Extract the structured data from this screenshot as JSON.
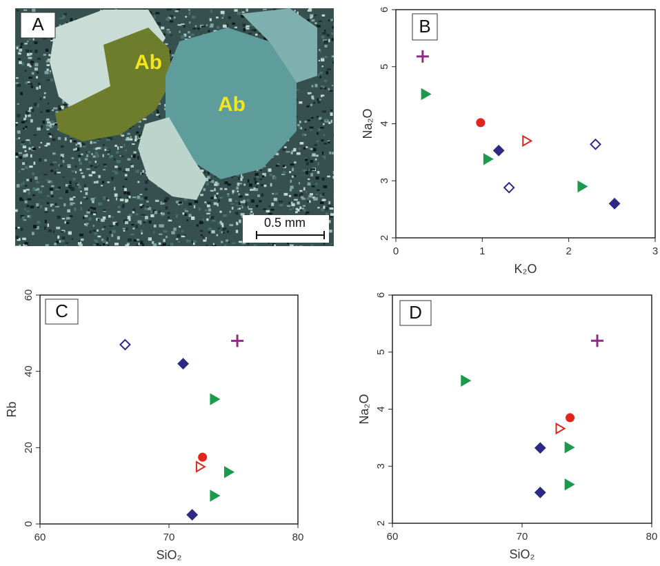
{
  "photo": {
    "label": "A",
    "annotations": [
      "Ab",
      "Ab"
    ],
    "scale_bar": "0.5 mm"
  },
  "chart_data": [
    {
      "type": "scatter",
      "label": "B",
      "xlabel": "K₂O",
      "ylabel": "Na₂O",
      "xlim": [
        0,
        3
      ],
      "ylim": [
        2,
        6
      ],
      "xticks": [
        0,
        1,
        2,
        3
      ],
      "yticks": [
        2,
        3,
        4,
        5,
        6
      ],
      "series": [
        {
          "marker": "plus",
          "color": "#8e2c84",
          "filled": true,
          "x": [
            0.31
          ],
          "values": [
            5.18
          ]
        },
        {
          "marker": "triangle",
          "color": "#1b9a4e",
          "filled": true,
          "x": [
            0.34,
            1.06,
            2.15
          ],
          "values": [
            4.52,
            3.38,
            2.9
          ]
        },
        {
          "marker": "circle",
          "color": "#e3241d",
          "filled": true,
          "x": [
            0.98
          ],
          "values": [
            4.02
          ]
        },
        {
          "marker": "triangle",
          "color": "#e3241d",
          "filled": false,
          "x": [
            1.51
          ],
          "values": [
            3.7
          ]
        },
        {
          "marker": "diamond",
          "color": "#2d2a86",
          "filled": true,
          "x": [
            1.19,
            2.53
          ],
          "values": [
            3.53,
            2.6
          ]
        },
        {
          "marker": "diamond",
          "color": "#2d2a86",
          "filled": false,
          "x": [
            1.31,
            2.31
          ],
          "values": [
            2.88,
            3.64
          ]
        }
      ]
    },
    {
      "type": "scatter",
      "label": "C",
      "xlabel": "SiO₂",
      "ylabel": "Rb",
      "xlim": [
        60,
        80
      ],
      "ylim": [
        0,
        60
      ],
      "xticks": [
        60,
        70,
        80
      ],
      "yticks": [
        0,
        20,
        40,
        60
      ],
      "series": [
        {
          "marker": "plus",
          "color": "#8e2c84",
          "filled": true,
          "x": [
            75.3
          ],
          "values": [
            48
          ]
        },
        {
          "marker": "triangle",
          "color": "#1b9a4e",
          "filled": true,
          "x": [
            73.5,
            74.6,
            73.5
          ],
          "values": [
            32.7,
            13.6,
            7.4
          ]
        },
        {
          "marker": "circle",
          "color": "#e3241d",
          "filled": true,
          "x": [
            72.6
          ],
          "values": [
            17.5
          ]
        },
        {
          "marker": "triangle",
          "color": "#e3241d",
          "filled": false,
          "x": [
            72.4
          ],
          "values": [
            15
          ]
        },
        {
          "marker": "diamond",
          "color": "#2d2a86",
          "filled": true,
          "x": [
            71.1,
            71.8
          ],
          "values": [
            42,
            2.4
          ]
        },
        {
          "marker": "diamond",
          "color": "#2d2a86",
          "filled": false,
          "x": [
            66.6
          ],
          "values": [
            47
          ]
        }
      ]
    },
    {
      "type": "scatter",
      "label": "D",
      "xlabel": "SiO₂",
      "ylabel": "Na₂O",
      "xlim": [
        60,
        80
      ],
      "ylim": [
        2,
        6
      ],
      "xticks": [
        60,
        70,
        80
      ],
      "yticks": [
        2,
        3,
        4,
        5,
        6
      ],
      "series": [
        {
          "marker": "plus",
          "color": "#8e2c84",
          "filled": true,
          "x": [
            75.8
          ],
          "values": [
            5.2
          ]
        },
        {
          "marker": "triangle",
          "color": "#1b9a4e",
          "filled": true,
          "x": [
            65.6,
            73.6,
            73.6
          ],
          "values": [
            4.5,
            3.33,
            2.68
          ]
        },
        {
          "marker": "circle",
          "color": "#e3241d",
          "filled": true,
          "x": [
            73.7
          ],
          "values": [
            3.85
          ]
        },
        {
          "marker": "triangle",
          "color": "#e3241d",
          "filled": false,
          "x": [
            72.9
          ],
          "values": [
            3.66
          ]
        },
        {
          "marker": "diamond",
          "color": "#2d2a86",
          "filled": true,
          "x": [
            71.4,
            71.4
          ],
          "values": [
            3.32,
            2.54
          ]
        }
      ]
    }
  ]
}
